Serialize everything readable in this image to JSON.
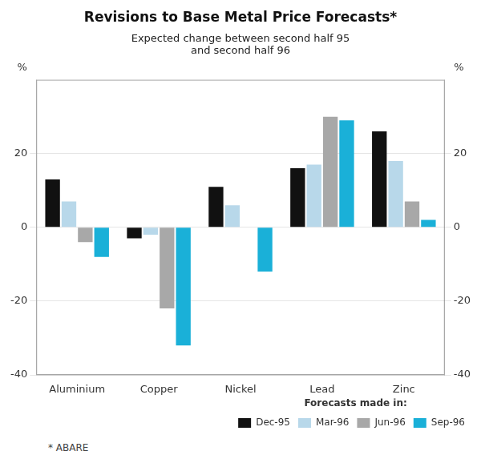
{
  "chart_data": {
    "type": "bar",
    "title": "Revisions to Base Metal Price Forecasts*",
    "subtitle": "Expected change between second half 95\nand second half 96",
    "footnote": "* ABARE",
    "categories": [
      "Aluminium",
      "Copper",
      "Nickel",
      "Lead",
      "Zinc"
    ],
    "series": [
      {
        "name": "Dec-95",
        "color": "#111111",
        "values": [
          13,
          -3,
          11,
          16,
          26
        ]
      },
      {
        "name": "Mar-96",
        "color": "#b8d8ea",
        "values": [
          7,
          -2,
          6,
          17,
          18
        ]
      },
      {
        "name": "Jun-96",
        "color": "#a8a8a8",
        "values": [
          -4,
          -22,
          0,
          30,
          7
        ]
      },
      {
        "name": "Sep-96",
        "color": "#1ab0d8",
        "values": [
          -8,
          -32,
          -12,
          29,
          2
        ]
      }
    ],
    "ylim": [
      -40,
      40
    ],
    "yticks": [
      -40,
      -20,
      0,
      20
    ],
    "y2lim": [
      -40,
      40
    ],
    "y2ticks": [
      -40,
      -20,
      0,
      20
    ],
    "ylabel": "%",
    "y2label": "%",
    "legend_title": "Forecasts made in:",
    "legend": "lower right",
    "grid": true
  }
}
